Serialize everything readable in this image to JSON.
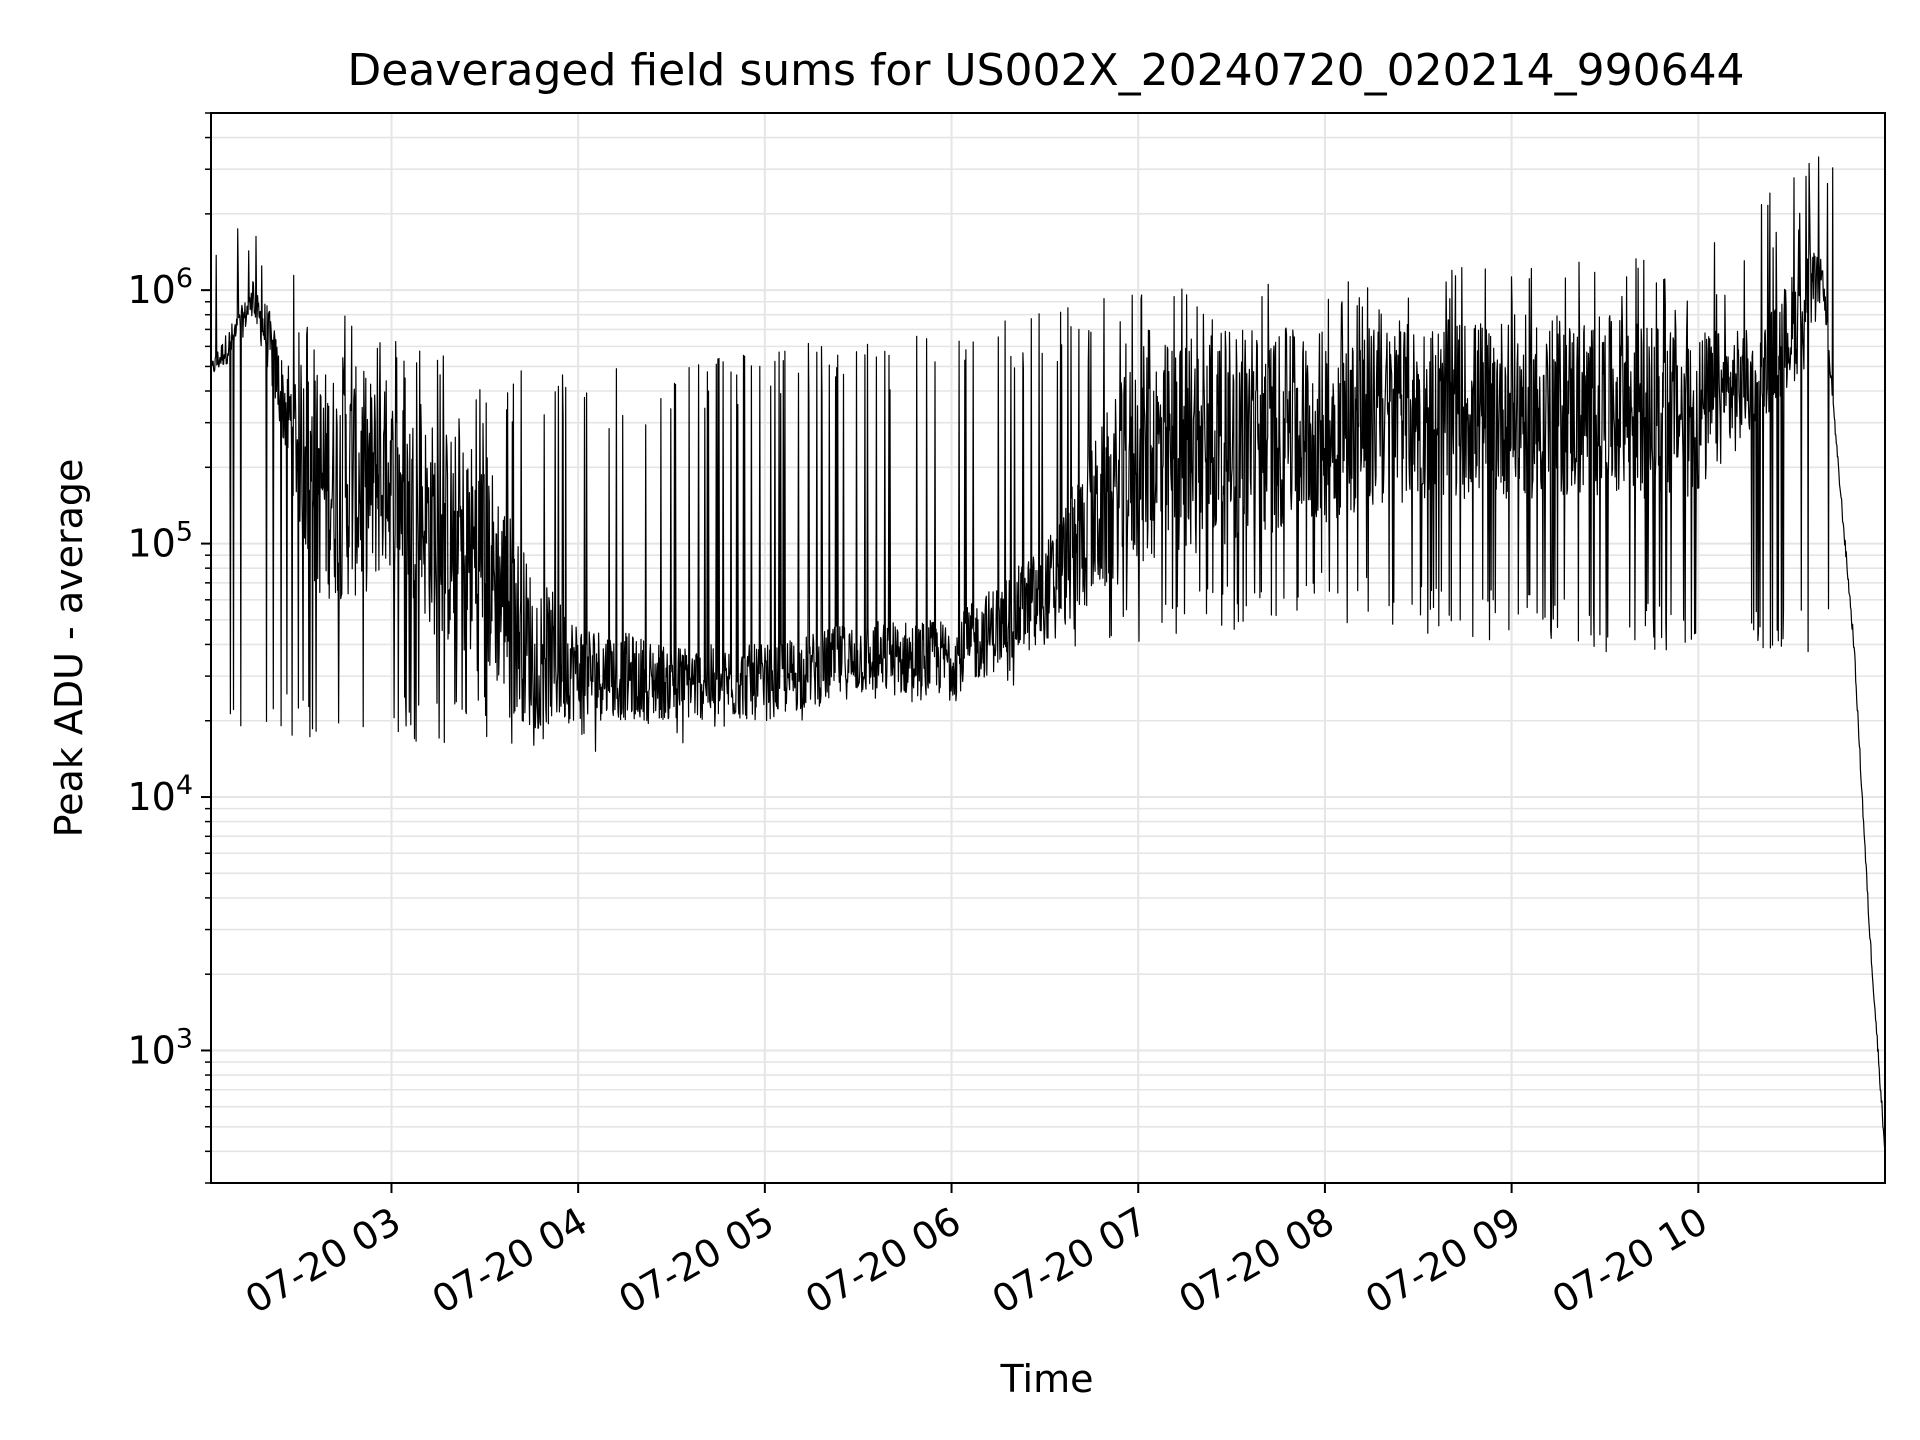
{
  "chart_data": {
    "type": "line",
    "title": "Deaveraged field sums for US002X_20240720_020214_990644",
    "xlabel": "Time",
    "ylabel": "Peak ADU - average",
    "yscale": "log",
    "ylim": [
      300,
      5000000
    ],
    "xlim": [
      "07-20 02:02",
      "07-20 11:00"
    ],
    "grid": true,
    "line_color": "#000000",
    "grid_color": "#e5e5e5",
    "x_ticks": [
      {
        "value": "07-20 03:00",
        "label": "07-20 03"
      },
      {
        "value": "07-20 04:00",
        "label": "07-20 04"
      },
      {
        "value": "07-20 05:00",
        "label": "07-20 05"
      },
      {
        "value": "07-20 06:00",
        "label": "07-20 06"
      },
      {
        "value": "07-20 07:00",
        "label": "07-20 07"
      },
      {
        "value": "07-20 08:00",
        "label": "07-20 08"
      },
      {
        "value": "07-20 09:00",
        "label": "07-20 09"
      },
      {
        "value": "07-20 10:00",
        "label": "07-20 10"
      }
    ],
    "y_ticks": [
      {
        "value": 1000,
        "base": "10",
        "exp": "3"
      },
      {
        "value": 10000,
        "base": "10",
        "exp": "4"
      },
      {
        "value": 100000,
        "base": "10",
        "exp": "5"
      },
      {
        "value": 1000000,
        "base": "10",
        "exp": "6"
      }
    ],
    "series": [
      {
        "x_start": "07-20 02:02",
        "x_end": "07-20 11:00",
        "envelope": [
          {
            "t": "07-20 02:02",
            "low": 450000,
            "high": 520000
          },
          {
            "t": "07-20 02:10",
            "low": 550000,
            "high": 800000
          },
          {
            "t": "07-20 02:15",
            "low": 800000,
            "high": 1000000
          },
          {
            "t": "07-20 02:20",
            "low": 500000,
            "high": 900000
          },
          {
            "t": "07-20 02:25",
            "low": 250000,
            "high": 550000
          },
          {
            "t": "07-20 02:35",
            "low": 60000,
            "high": 500000
          },
          {
            "t": "07-20 02:50",
            "low": 60000,
            "high": 500000
          },
          {
            "t": "07-20 03:00",
            "low": 80000,
            "high": 400000
          },
          {
            "t": "07-20 03:15",
            "low": 40000,
            "high": 300000
          },
          {
            "t": "07-20 03:30",
            "low": 30000,
            "high": 250000
          },
          {
            "t": "07-20 03:45",
            "low": 18000,
            "high": 80000
          },
          {
            "t": "07-20 04:00",
            "low": 20000,
            "high": 50000
          },
          {
            "t": "07-20 04:30",
            "low": 20000,
            "high": 40000
          },
          {
            "t": "07-20 05:00",
            "low": 20000,
            "high": 40000
          },
          {
            "t": "07-20 05:30",
            "low": 25000,
            "high": 50000
          },
          {
            "t": "07-20 06:00",
            "low": 25000,
            "high": 50000
          },
          {
            "t": "07-20 06:30",
            "low": 40000,
            "high": 100000
          },
          {
            "t": "07-20 07:00",
            "low": 80000,
            "high": 600000
          },
          {
            "t": "07-20 07:30",
            "low": 100000,
            "high": 700000
          },
          {
            "t": "07-20 08:00",
            "low": 120000,
            "high": 700000
          },
          {
            "t": "07-20 08:30",
            "low": 150000,
            "high": 750000
          },
          {
            "t": "07-20 09:00",
            "low": 150000,
            "high": 800000
          },
          {
            "t": "07-20 09:30",
            "low": 150000,
            "high": 800000
          },
          {
            "t": "07-20 10:00",
            "low": 150000,
            "high": 700000
          },
          {
            "t": "07-20 10:20",
            "low": 300000,
            "high": 700000
          },
          {
            "t": "07-20 10:35",
            "low": 500000,
            "high": 1500000
          },
          {
            "t": "07-20 10:40",
            "low": 1000000,
            "high": 1300000
          },
          {
            "t": "07-20 10:45",
            "low": 200000,
            "high": 200000
          },
          {
            "t": "07-20 10:50",
            "low": 40000,
            "high": 40000
          },
          {
            "t": "07-20 10:55",
            "low": 3000,
            "high": 3000
          },
          {
            "t": "07-20 11:00",
            "low": 400,
            "high": 400
          }
        ],
        "spike_floors": [
          {
            "t": "07-20 03:30",
            "value": 16000
          },
          {
            "t": "07-20 04:00",
            "value": 15000
          },
          {
            "t": "07-20 04:30",
            "value": 15000
          },
          {
            "t": "07-20 05:00",
            "value": 20000
          },
          {
            "t": "07-20 05:45",
            "value": 20000
          },
          {
            "t": "07-20 06:30",
            "value": 30000
          },
          {
            "t": "07-20 07:00",
            "value": 40000
          },
          {
            "t": "07-20 08:00",
            "value": 50000
          },
          {
            "t": "07-20 09:00",
            "value": 40000
          },
          {
            "t": "07-20 10:00",
            "value": 35000
          }
        ],
        "spike_ceilings": [
          {
            "t": "07-20 02:15",
            "value": 1800000
          },
          {
            "t": "07-20 02:30",
            "value": 1100000
          },
          {
            "t": "07-20 03:00",
            "value": 700000
          },
          {
            "t": "07-20 03:30",
            "value": 500000
          },
          {
            "t": "07-20 04:00",
            "value": 500000
          },
          {
            "t": "07-20 05:00",
            "value": 600000
          },
          {
            "t": "07-20 06:00",
            "value": 700000
          },
          {
            "t": "07-20 07:00",
            "value": 1000000
          },
          {
            "t": "07-20 08:00",
            "value": 1100000
          },
          {
            "t": "07-20 09:00",
            "value": 1300000
          },
          {
            "t": "07-20 10:00",
            "value": 1400000
          },
          {
            "t": "07-20 10:37",
            "value": 3500000
          }
        ]
      }
    ]
  }
}
